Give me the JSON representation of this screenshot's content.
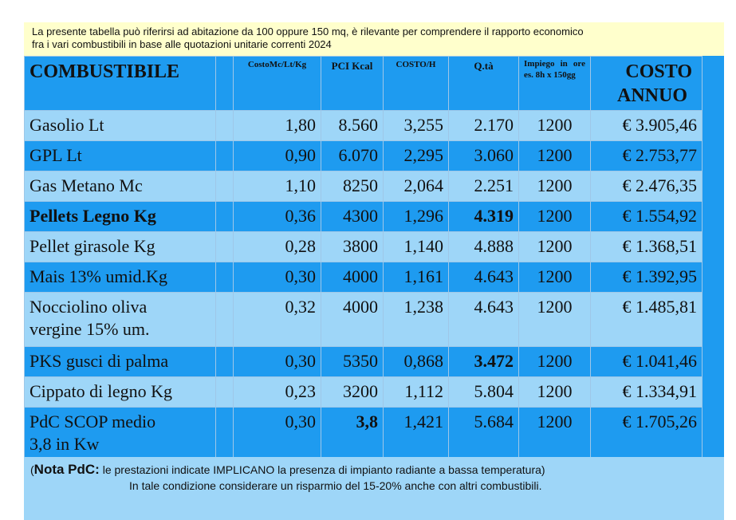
{
  "intro": {
    "line1": "La presente tabella può riferirsi ad abitazione da 100 oppure 150 mq, è rilevante per comprendere il rapporto economico",
    "line2": "fra i vari combustibili in base alle quotazioni unitarie correnti 2024"
  },
  "headers": {
    "name": "COMBUSTIBILE",
    "cost_unit": "CostoMc/Lt/Kg",
    "pci": "PCI Kcal",
    "cost_h": "COSTO/H",
    "qty": "Q.tà",
    "usage": "Impiego in ore es. 8h x 150gg",
    "annual_line1": "COSTO",
    "annual_line2": "ANNUO"
  },
  "rows": [
    {
      "name": "Gasolio Lt",
      "cost_unit": "1,80",
      "pci": "8.560",
      "cost_h": "3,255",
      "qty": "2.170",
      "usage": "1200",
      "annual": "€ 3.905,46"
    },
    {
      "name": "GPL Lt",
      "cost_unit": "0,90",
      "pci": "6.070",
      "cost_h": "2,295",
      "qty": "3.060",
      "usage": "1200",
      "annual": "€ 2.753,77"
    },
    {
      "name": "Gas Metano Mc",
      "cost_unit": "1,10",
      "pci": "8250",
      "cost_h": "2,064",
      "qty": "2.251",
      "usage": "1200",
      "annual": "€ 2.476,35"
    },
    {
      "name": "Pellets Legno Kg",
      "cost_unit": "0,36",
      "pci": "4300",
      "cost_h": "1,296",
      "qty": "4.319",
      "usage": "1200",
      "annual": "€ 1.554,92"
    },
    {
      "name": "Pellet girasole Kg",
      "cost_unit": "0,28",
      "pci": "3800",
      "cost_h": "1,140",
      "qty": "4.888",
      "usage": "1200",
      "annual": "€ 1.368,51"
    },
    {
      "name": "Mais 13% umid.Kg",
      "cost_unit": "0,30",
      "pci": "4000",
      "cost_h": "1,161",
      "qty": "4.643",
      "usage": "1200",
      "annual": "€ 1.392,95"
    },
    {
      "name_line1": "Nocciolino oliva",
      "name_line2": "vergine 15% um.",
      "cost_unit": "0,32",
      "pci": "4000",
      "cost_h": "1,238",
      "qty": "4.643",
      "usage": "1200",
      "annual": "€ 1.485,81"
    },
    {
      "name": "PKS gusci di palma",
      "cost_unit": "0,30",
      "pci": "5350",
      "cost_h": "0,868",
      "qty": "3.472",
      "usage": "1200",
      "annual": "€ 1.041,46"
    },
    {
      "name": "Cippato di legno Kg",
      "cost_unit": "0,23",
      "pci": "3200",
      "cost_h": "1,112",
      "qty": "5.804",
      "usage": "1200",
      "annual": "€ 1.334,91"
    },
    {
      "name_line1": "PdC SCOP medio",
      "name_line2": "3,8 in Kw",
      "cost_unit": "0,30",
      "pci": "3,8",
      "cost_h": "1,421",
      "qty": "5.684",
      "usage": "1200",
      "annual": "€ 1.705,26"
    }
  ],
  "note": {
    "open_paren": "(",
    "lead": "Nota PdC:",
    "line1": " le prestazioni indicate IMPLICANO la presenza di impianto radiante a bassa temperatura)",
    "line2": "In tale condizione considerare un risparmio del 15-20% anche con altri combustibili."
  },
  "colors": {
    "dark_row": "#1e9bf0",
    "light_row": "#9ed6f8",
    "intro_bg": "#ffffcc"
  }
}
